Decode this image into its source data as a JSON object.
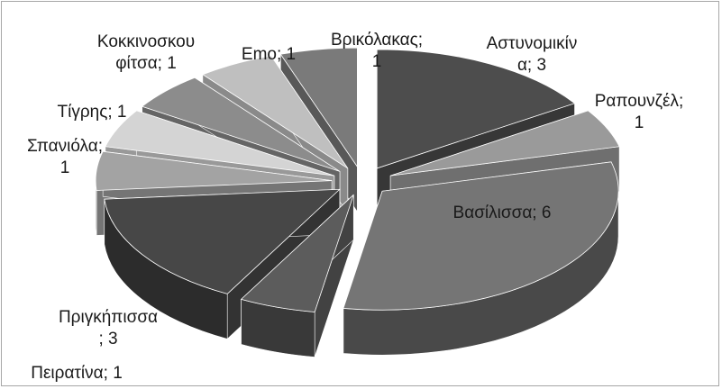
{
  "chart_data": {
    "type": "pie",
    "three_d": true,
    "exploded": true,
    "legend": "none",
    "categories": [
      "Αστυνομικίνα",
      "Ραπουνζέλ",
      "Βασίλισσα",
      "Πειρατίνα",
      "Πριγκήπισσα",
      "Σπανιόλα",
      "Τίγρης",
      "Κοκκινοσκουφίτσα",
      "Emo",
      "Βρικόλακας"
    ],
    "values": [
      3,
      1,
      6,
      1,
      3,
      1,
      1,
      1,
      1,
      1
    ],
    "data_labels": [
      [
        "Αστυνομικίν",
        "α; 3"
      ],
      [
        "Ραπουνζέλ;",
        "1"
      ],
      [
        "Βασίλισσα; 6"
      ],
      [
        "Πειρατίνα; 1"
      ],
      [
        "Πριγκήπισσα",
        "; 3"
      ],
      [
        "Σπανιόλα;",
        "1"
      ],
      [
        "Τίγρης; 1"
      ],
      [
        "Κοκκινοσκου",
        "φίτσα; 1"
      ],
      [
        "Emo; 1"
      ],
      [
        "Βρικόλακας;",
        "1"
      ]
    ],
    "colors": [
      "#4d4d4d",
      "#9a9a9a",
      "#757575",
      "#5c5c5c",
      "#474747",
      "#a3a3a3",
      "#d4d4d4",
      "#8c8c8c",
      "#bfbfbf",
      "#7a7a7a"
    ]
  }
}
